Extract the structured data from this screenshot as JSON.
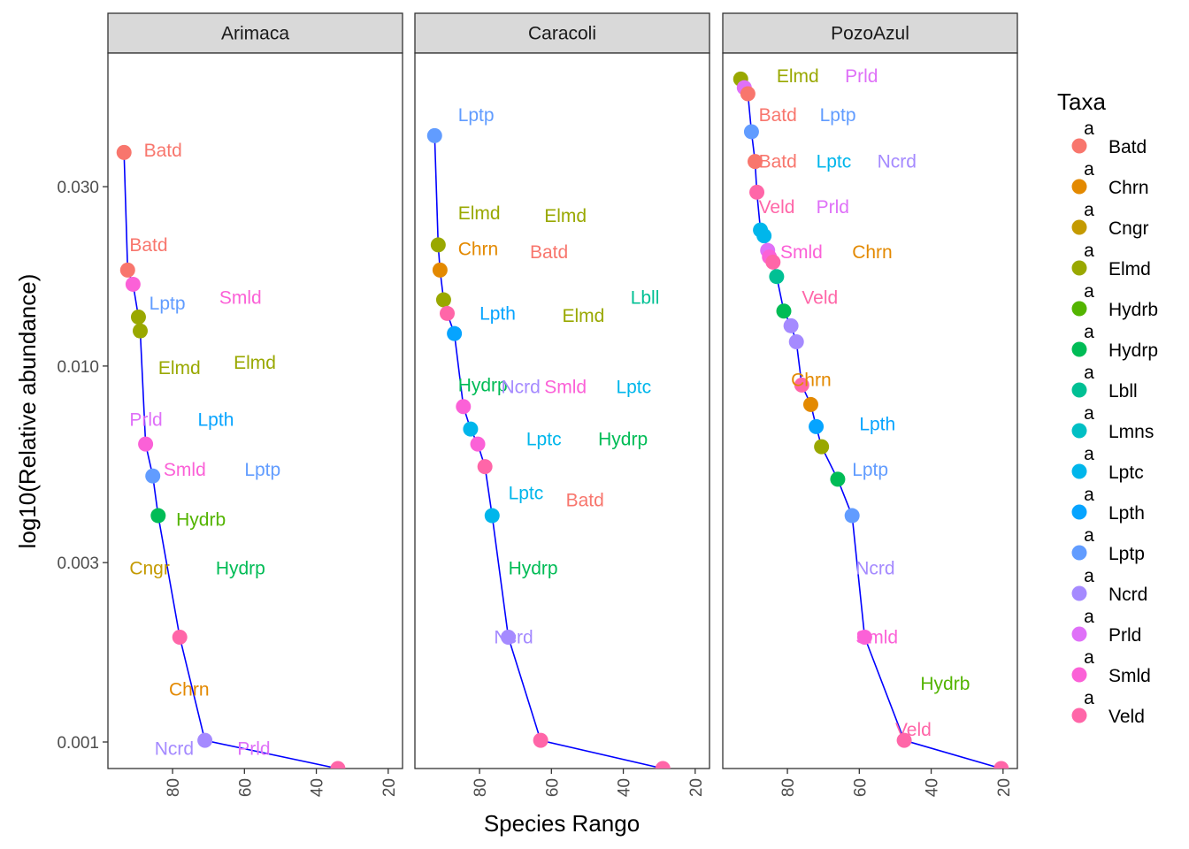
{
  "chart_data": {
    "type": "scatter",
    "xlabel": "Species Rango",
    "ylabel": "log10(Relative abundance)",
    "x_scale": "reversed",
    "y_scale": "log10",
    "xlim": [
      97,
      17
    ],
    "ylim": [
      0.00085,
      0.068
    ],
    "x_ticks": [
      80,
      60,
      40,
      20
    ],
    "y_ticks": [
      0.001,
      0.003,
      0.01,
      0.03
    ],
    "y_tick_labels": [
      "0.001",
      "0.003",
      "0.010",
      "0.030"
    ],
    "grid": false,
    "line_color": "#0000ff",
    "legend": {
      "title": "Taxa",
      "position": "right",
      "key_glyph_text": "a",
      "items": [
        {
          "name": "Batd",
          "color": "#F8766D"
        },
        {
          "name": "Chrn",
          "color": "#E38900"
        },
        {
          "name": "Cngr",
          "color": "#C49A00"
        },
        {
          "name": "Elmd",
          "color": "#99A800"
        },
        {
          "name": "Hydrb",
          "color": "#53B400"
        },
        {
          "name": "Hydrp",
          "color": "#00BC56"
        },
        {
          "name": "Lbll",
          "color": "#00C094"
        },
        {
          "name": "Lmns",
          "color": "#00BFC4"
        },
        {
          "name": "Lptc",
          "color": "#00B6EB"
        },
        {
          "name": "Lpth",
          "color": "#06A4FF"
        },
        {
          "name": "Lptp",
          "color": "#619CFF"
        },
        {
          "name": "Ncrd",
          "color": "#A58AFF"
        },
        {
          "name": "Prld",
          "color": "#DF70F8"
        },
        {
          "name": "Smld",
          "color": "#FB61D7"
        },
        {
          "name": "Veld",
          "color": "#FF66A8"
        }
      ]
    },
    "panels": [
      {
        "name": "Arimaca",
        "points": [
          {
            "x": 93.5,
            "y": 0.037,
            "taxon": "Batd"
          },
          {
            "x": 92.5,
            "y": 0.018,
            "taxon": "Batd"
          },
          {
            "x": 91.0,
            "y": 0.0165,
            "taxon": "Smld"
          },
          {
            "x": 89.5,
            "y": 0.0135,
            "taxon": "Elmd"
          },
          {
            "x": 89.0,
            "y": 0.0124,
            "taxon": "Elmd"
          },
          {
            "x": 87.5,
            "y": 0.0062,
            "taxon": "Smld"
          },
          {
            "x": 85.5,
            "y": 0.0051,
            "taxon": "Lptp"
          },
          {
            "x": 84.0,
            "y": 0.004,
            "taxon": "Hydrp"
          },
          {
            "x": 78.0,
            "y": 0.0019,
            "taxon": "Veld"
          },
          {
            "x": 71.0,
            "y": 0.00101,
            "taxon": "Ncrd"
          },
          {
            "x": 34.0,
            "y": 0.00085,
            "taxon": "Veld"
          }
        ],
        "labels": [
          {
            "text": "Batd",
            "x": 88.0,
            "y": 0.0375,
            "taxon": "Batd"
          },
          {
            "text": "Batd",
            "x": 92.0,
            "y": 0.021,
            "taxon": "Batd"
          },
          {
            "text": "Lptp",
            "x": 86.5,
            "y": 0.0147,
            "taxon": "Lptp"
          },
          {
            "text": "Smld",
            "x": 67.0,
            "y": 0.0152,
            "taxon": "Smld"
          },
          {
            "text": "Elmd",
            "x": 84.0,
            "y": 0.0099,
            "taxon": "Elmd"
          },
          {
            "text": "Elmd",
            "x": 63.0,
            "y": 0.0102,
            "taxon": "Elmd"
          },
          {
            "text": "Prld",
            "x": 92.0,
            "y": 0.0072,
            "taxon": "Prld"
          },
          {
            "text": "Lpth",
            "x": 73.0,
            "y": 0.0072,
            "taxon": "Lpth"
          },
          {
            "text": "Smld",
            "x": 82.5,
            "y": 0.0053,
            "taxon": "Smld"
          },
          {
            "text": "Lptp",
            "x": 60.0,
            "y": 0.0053,
            "taxon": "Lptp"
          },
          {
            "text": "Hydrb",
            "x": 79.0,
            "y": 0.0039,
            "taxon": "Hydrb"
          },
          {
            "text": "Cngr",
            "x": 92.0,
            "y": 0.0029,
            "taxon": "Cngr"
          },
          {
            "text": "Hydrp",
            "x": 68.0,
            "y": 0.0029,
            "taxon": "Hydrp"
          },
          {
            "text": "Chrn",
            "x": 81.0,
            "y": 0.00138,
            "taxon": "Chrn"
          },
          {
            "text": "Ncrd",
            "x": 85.0,
            "y": 0.00096,
            "taxon": "Ncrd"
          },
          {
            "text": "Prld",
            "x": 62.0,
            "y": 0.00096,
            "taxon": "Prld"
          }
        ]
      },
      {
        "name": "Caracoli",
        "points": [
          {
            "x": 92.5,
            "y": 0.041,
            "taxon": "Lptp"
          },
          {
            "x": 91.5,
            "y": 0.021,
            "taxon": "Elmd"
          },
          {
            "x": 91.0,
            "y": 0.018,
            "taxon": "Chrn"
          },
          {
            "x": 90.0,
            "y": 0.015,
            "taxon": "Elmd"
          },
          {
            "x": 89.0,
            "y": 0.0138,
            "taxon": "Veld"
          },
          {
            "x": 87.0,
            "y": 0.0122,
            "taxon": "Lpth"
          },
          {
            "x": 84.5,
            "y": 0.0078,
            "taxon": "Smld"
          },
          {
            "x": 82.5,
            "y": 0.0068,
            "taxon": "Lptc"
          },
          {
            "x": 80.5,
            "y": 0.0062,
            "taxon": "Smld"
          },
          {
            "x": 78.5,
            "y": 0.0054,
            "taxon": "Veld"
          },
          {
            "x": 76.5,
            "y": 0.004,
            "taxon": "Lptc"
          },
          {
            "x": 72.0,
            "y": 0.0019,
            "taxon": "Ncrd"
          },
          {
            "x": 63.0,
            "y": 0.00101,
            "taxon": "Veld"
          },
          {
            "x": 29.0,
            "y": 0.00085,
            "taxon": "Veld"
          }
        ],
        "labels": [
          {
            "text": "Lptp",
            "x": 86.0,
            "y": 0.0465,
            "taxon": "Lptp"
          },
          {
            "text": "Elmd",
            "x": 86.0,
            "y": 0.0255,
            "taxon": "Elmd"
          },
          {
            "text": "Elmd",
            "x": 62.0,
            "y": 0.0251,
            "taxon": "Elmd"
          },
          {
            "text": "Chrn",
            "x": 86.0,
            "y": 0.0205,
            "taxon": "Chrn"
          },
          {
            "text": "Batd",
            "x": 66.0,
            "y": 0.0201,
            "taxon": "Batd"
          },
          {
            "text": "Lbll",
            "x": 38.0,
            "y": 0.0152,
            "taxon": "Lbll"
          },
          {
            "text": "Lpth",
            "x": 80.0,
            "y": 0.0138,
            "taxon": "Lpth"
          },
          {
            "text": "Elmd",
            "x": 57.0,
            "y": 0.0136,
            "taxon": "Elmd"
          },
          {
            "text": "Hydrp",
            "x": 86.0,
            "y": 0.0089,
            "taxon": "Hydrp"
          },
          {
            "text": "Ncrd",
            "x": 74.0,
            "y": 0.0088,
            "taxon": "Ncrd"
          },
          {
            "text": "Smld",
            "x": 62.0,
            "y": 0.0088,
            "taxon": "Smld"
          },
          {
            "text": "Lptc",
            "x": 42.0,
            "y": 0.0088,
            "taxon": "Lptc"
          },
          {
            "text": "Lptc",
            "x": 67.0,
            "y": 0.0064,
            "taxon": "Lptc"
          },
          {
            "text": "Hydrp",
            "x": 47.0,
            "y": 0.0064,
            "taxon": "Hydrp"
          },
          {
            "text": "Lptc",
            "x": 72.0,
            "y": 0.0046,
            "taxon": "Lptc"
          },
          {
            "text": "Batd",
            "x": 56.0,
            "y": 0.0044,
            "taxon": "Batd"
          },
          {
            "text": "Hydrp",
            "x": 72.0,
            "y": 0.0029,
            "taxon": "Hydrp"
          },
          {
            "text": "Ncrd",
            "x": 76.0,
            "y": 0.0019,
            "taxon": "Ncrd"
          }
        ]
      },
      {
        "name": "PozoAzul",
        "points": [
          {
            "x": 93.0,
            "y": 0.058,
            "taxon": "Elmd"
          },
          {
            "x": 92.0,
            "y": 0.055,
            "taxon": "Prld"
          },
          {
            "x": 91.0,
            "y": 0.053,
            "taxon": "Batd"
          },
          {
            "x": 90.0,
            "y": 0.042,
            "taxon": "Lptp"
          },
          {
            "x": 89.0,
            "y": 0.035,
            "taxon": "Batd"
          },
          {
            "x": 88.5,
            "y": 0.029,
            "taxon": "Veld"
          },
          {
            "x": 87.5,
            "y": 0.023,
            "taxon": "Lptc"
          },
          {
            "x": 86.5,
            "y": 0.0222,
            "taxon": "Lptc"
          },
          {
            "x": 85.5,
            "y": 0.0203,
            "taxon": "Prld"
          },
          {
            "x": 85.0,
            "y": 0.0195,
            "taxon": "Smld"
          },
          {
            "x": 84.0,
            "y": 0.0189,
            "taxon": "Veld"
          },
          {
            "x": 83.0,
            "y": 0.0173,
            "taxon": "Lbll"
          },
          {
            "x": 81.0,
            "y": 0.014,
            "taxon": "Hydrp"
          },
          {
            "x": 79.0,
            "y": 0.0128,
            "taxon": "Ncrd"
          },
          {
            "x": 77.5,
            "y": 0.0116,
            "taxon": "Ncrd"
          },
          {
            "x": 76.0,
            "y": 0.0089,
            "taxon": "Veld"
          },
          {
            "x": 73.5,
            "y": 0.0079,
            "taxon": "Chrn"
          },
          {
            "x": 72.0,
            "y": 0.0069,
            "taxon": "Lpth"
          },
          {
            "x": 70.5,
            "y": 0.0061,
            "taxon": "Elmd"
          },
          {
            "x": 66.0,
            "y": 0.005,
            "taxon": "Hydrp"
          },
          {
            "x": 62.0,
            "y": 0.004,
            "taxon": "Lptp"
          },
          {
            "x": 58.5,
            "y": 0.0019,
            "taxon": "Smld"
          },
          {
            "x": 47.5,
            "y": 0.00101,
            "taxon": "Veld"
          },
          {
            "x": 20.5,
            "y": 0.00085,
            "taxon": "Veld"
          }
        ],
        "labels": [
          {
            "text": "Elmd",
            "x": 83.0,
            "y": 0.059,
            "taxon": "Elmd"
          },
          {
            "text": "Prld",
            "x": 64.0,
            "y": 0.059,
            "taxon": "Prld"
          },
          {
            "text": "Batd",
            "x": 88.0,
            "y": 0.0465,
            "taxon": "Batd"
          },
          {
            "text": "Lptp",
            "x": 71.0,
            "y": 0.0465,
            "taxon": "Lptp"
          },
          {
            "text": "Batd",
            "x": 88.0,
            "y": 0.035,
            "taxon": "Batd"
          },
          {
            "text": "Lptc",
            "x": 72.0,
            "y": 0.035,
            "taxon": "Lptc"
          },
          {
            "text": "Ncrd",
            "x": 55.0,
            "y": 0.035,
            "taxon": "Ncrd"
          },
          {
            "text": "Veld",
            "x": 88.0,
            "y": 0.0265,
            "taxon": "Veld"
          },
          {
            "text": "Prld",
            "x": 72.0,
            "y": 0.0265,
            "taxon": "Prld"
          },
          {
            "text": "Smld",
            "x": 82.0,
            "y": 0.0201,
            "taxon": "Smld"
          },
          {
            "text": "Chrn",
            "x": 62.0,
            "y": 0.0201,
            "taxon": "Chrn"
          },
          {
            "text": "Veld",
            "x": 76.0,
            "y": 0.0152,
            "taxon": "Veld"
          },
          {
            "text": "Chrn",
            "x": 79.0,
            "y": 0.0092,
            "taxon": "Chrn"
          },
          {
            "text": "Lpth",
            "x": 60.0,
            "y": 0.007,
            "taxon": "Lpth"
          },
          {
            "text": "Lptp",
            "x": 62.0,
            "y": 0.0053,
            "taxon": "Lptp"
          },
          {
            "text": "Ncrd",
            "x": 61.0,
            "y": 0.0029,
            "taxon": "Ncrd"
          },
          {
            "text": "Smld",
            "x": 61.0,
            "y": 0.0019,
            "taxon": "Smld"
          },
          {
            "text": "Hydrb",
            "x": 43.0,
            "y": 0.00143,
            "taxon": "Hydrb"
          },
          {
            "text": "Veld",
            "x": 50.0,
            "y": 0.00108,
            "taxon": "Veld"
          }
        ]
      }
    ]
  }
}
